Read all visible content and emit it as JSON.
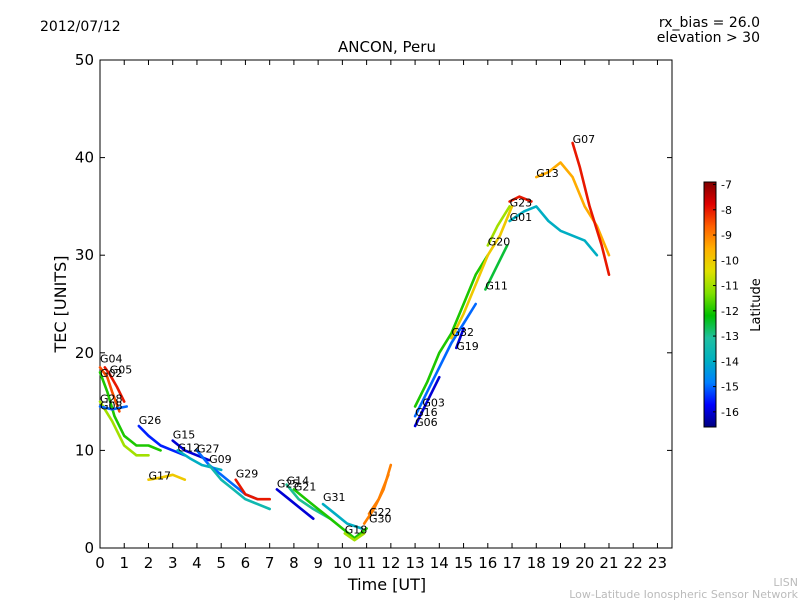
{
  "header": {
    "date": "2012/07/12",
    "rx_bias": "rx_bias = 26.0",
    "elevation": "elevation > 30"
  },
  "footer": {
    "line1": "LISN",
    "line2": "Low-Latitude Ionospheric Sensor Network"
  },
  "chart_data": {
    "type": "line",
    "title": "ANCON, Peru",
    "xlabel": "Time [UT]",
    "ylabel": "TEC [UNITS]",
    "xlim": [
      0,
      23.6
    ],
    "ylim": [
      0,
      50
    ],
    "xticks": [
      0,
      1,
      2,
      3,
      4,
      5,
      6,
      7,
      8,
      9,
      10,
      11,
      12,
      13,
      14,
      15,
      16,
      17,
      18,
      19,
      20,
      21,
      22,
      23
    ],
    "yticks": [
      0,
      10,
      20,
      30,
      40,
      50
    ],
    "grid": false,
    "colorbar": {
      "label": "Latitude",
      "min": -16.6,
      "max": -6.9,
      "ticks": [
        -7,
        -8,
        -9,
        -10,
        -11,
        -12,
        -13,
        -14,
        -15,
        -16
      ],
      "colors": [
        "#00007f",
        "#0000ff",
        "#0080ff",
        "#00b0c0",
        "#20c0a0",
        "#00c000",
        "#80e000",
        "#e0e000",
        "#ffb000",
        "#ff6000",
        "#e00000",
        "#7f0000"
      ]
    },
    "series": [
      {
        "name": "G04",
        "label_x": 0.0,
        "label_y": 19.0,
        "lat": -12,
        "points": [
          [
            0,
            18
          ],
          [
            0.3,
            16
          ],
          [
            0.6,
            13.5
          ],
          [
            1,
            11.5
          ],
          [
            1.5,
            10.5
          ],
          [
            2,
            10.5
          ],
          [
            2.5,
            10
          ]
        ]
      },
      {
        "name": "G02",
        "label_x": 0.0,
        "label_y": 17.5,
        "lat": -8.5,
        "points": [
          [
            0,
            18.5
          ],
          [
            0.3,
            17.5
          ],
          [
            0.5,
            16
          ],
          [
            0.8,
            14
          ]
        ]
      },
      {
        "name": "G05",
        "label_x": 0.4,
        "label_y": 17.9,
        "lat": -8,
        "points": [
          [
            0.2,
            18.5
          ],
          [
            0.4,
            17.8
          ],
          [
            0.7,
            16.5
          ],
          [
            1,
            15
          ]
        ]
      },
      {
        "name": "G28",
        "label_x": 0.0,
        "label_y": 14.9,
        "lat": -11,
        "points": [
          [
            0,
            15
          ],
          [
            0.5,
            13
          ],
          [
            1,
            10.5
          ],
          [
            1.5,
            9.5
          ],
          [
            2,
            9.5
          ]
        ]
      },
      {
        "name": "G08",
        "label_x": 0.0,
        "label_y": 14.2,
        "lat": -15,
        "points": [
          [
            0,
            14.5
          ],
          [
            0.5,
            14.2
          ],
          [
            1.1,
            14.5
          ]
        ]
      },
      {
        "name": "G30",
        "label_x": 11.1,
        "label_y": 2.6,
        "lat": -9,
        "points": [
          [
            10.9,
            2.5
          ],
          [
            11.3,
            4
          ],
          [
            11.7,
            6
          ],
          [
            12,
            8.5
          ]
        ]
      },
      {
        "name": "G26",
        "label_x": 1.6,
        "label_y": 12.7,
        "lat": -15.5,
        "points": [
          [
            1.6,
            12.5
          ],
          [
            2,
            11.5
          ],
          [
            2.5,
            10.5
          ],
          [
            3,
            10
          ],
          [
            3.5,
            9.5
          ]
        ]
      },
      {
        "name": "G17",
        "label_x": 2.0,
        "label_y": 7.0,
        "lat": -10,
        "points": [
          [
            2,
            7
          ],
          [
            2.5,
            7.2
          ],
          [
            3,
            7.5
          ],
          [
            3.5,
            7
          ]
        ]
      },
      {
        "name": "G15",
        "label_x": 3.0,
        "label_y": 11.2,
        "lat": -16,
        "points": [
          [
            3,
            11
          ],
          [
            3.5,
            10
          ],
          [
            4,
            9.5
          ],
          [
            4.5,
            9
          ]
        ]
      },
      {
        "name": "G12",
        "label_x": 3.2,
        "label_y": 9.9,
        "lat": -14,
        "points": [
          [
            3.2,
            10
          ],
          [
            3.7,
            9.2
          ],
          [
            4.2,
            8.5
          ],
          [
            5,
            8
          ]
        ]
      },
      {
        "name": "G27",
        "label_x": 4.0,
        "label_y": 9.8,
        "lat": -15,
        "points": [
          [
            4,
            10
          ],
          [
            4.5,
            8.5
          ],
          [
            5,
            7.5
          ],
          [
            5.5,
            6.5
          ],
          [
            6,
            5.5
          ],
          [
            6.5,
            5
          ]
        ]
      },
      {
        "name": "G09",
        "label_x": 4.5,
        "label_y": 8.7,
        "lat": -13.5,
        "points": [
          [
            4.5,
            8.5
          ],
          [
            5,
            7
          ],
          [
            5.5,
            6
          ],
          [
            6,
            5
          ],
          [
            6.5,
            4.5
          ],
          [
            7,
            4
          ]
        ]
      },
      {
        "name": "G29",
        "label_x": 5.6,
        "label_y": 7.2,
        "lat": -8,
        "points": [
          [
            5.6,
            7
          ],
          [
            6,
            5.5
          ],
          [
            6.5,
            5
          ],
          [
            7,
            5
          ]
        ]
      },
      {
        "name": "G25",
        "label_x": 7.3,
        "label_y": 6.2,
        "lat": -16,
        "points": [
          [
            7.3,
            6
          ],
          [
            7.8,
            5
          ],
          [
            8.3,
            4
          ],
          [
            8.8,
            3
          ]
        ]
      },
      {
        "name": "G14",
        "label_x": 7.7,
        "label_y": 6.5,
        "lat": -13,
        "points": [
          [
            7.7,
            6.5
          ],
          [
            8.2,
            5
          ],
          [
            8.8,
            4
          ],
          [
            9.5,
            3
          ]
        ]
      },
      {
        "name": "G21",
        "label_x": 8.0,
        "label_y": 5.9,
        "lat": -12,
        "points": [
          [
            8,
            6
          ],
          [
            8.5,
            5
          ],
          [
            9,
            4
          ],
          [
            9.5,
            3
          ],
          [
            10,
            2
          ],
          [
            10.5,
            1
          ],
          [
            11,
            2
          ]
        ]
      },
      {
        "name": "G31",
        "label_x": 9.2,
        "label_y": 4.8,
        "lat": -14,
        "points": [
          [
            9.2,
            4.5
          ],
          [
            9.7,
            3.5
          ],
          [
            10.2,
            2.5
          ],
          [
            10.8,
            2
          ]
        ]
      },
      {
        "name": "G18",
        "label_x": 10.1,
        "label_y": 1.5,
        "lat": -11,
        "points": [
          [
            10.1,
            1.5
          ],
          [
            10.5,
            0.8
          ],
          [
            10.9,
            1.5
          ]
        ]
      },
      {
        "name": "G22",
        "label_x": 11.1,
        "label_y": 3.3,
        "lat": -9,
        "points": [
          [
            11.1,
            3.5
          ],
          [
            11.5,
            5
          ],
          [
            11.9,
            7.5
          ]
        ]
      },
      {
        "name": "G16",
        "label_x": 13.0,
        "label_y": 13.5,
        "lat": -15,
        "points": [
          [
            13,
            13.5
          ],
          [
            13.5,
            16
          ],
          [
            14,
            18.5
          ],
          [
            14.5,
            21
          ],
          [
            15,
            23
          ],
          [
            15.5,
            25
          ]
        ]
      },
      {
        "name": "G06",
        "label_x": 13.0,
        "label_y": 12.5,
        "lat": -16,
        "points": [
          [
            13,
            12.5
          ],
          [
            13.5,
            15
          ],
          [
            14,
            17.5
          ]
        ]
      },
      {
        "name": "G03",
        "label_x": 13.3,
        "label_y": 14.5,
        "lat": -12,
        "points": [
          [
            13,
            14.5
          ],
          [
            13.5,
            17
          ],
          [
            14,
            20
          ],
          [
            14.5,
            22
          ],
          [
            15,
            25
          ],
          [
            15.5,
            28
          ],
          [
            16,
            30
          ]
        ]
      },
      {
        "name": "G32",
        "label_x": 14.5,
        "label_y": 21.7,
        "lat": -10,
        "points": [
          [
            14.5,
            21.5
          ],
          [
            15,
            24
          ],
          [
            15.5,
            27
          ],
          [
            16,
            30
          ],
          [
            16.5,
            32
          ],
          [
            17,
            35
          ]
        ]
      },
      {
        "name": "G19",
        "label_x": 14.7,
        "label_y": 20.3,
        "lat": -16,
        "points": [
          [
            14.7,
            20.5
          ],
          [
            15,
            22.5
          ]
        ]
      },
      {
        "name": "G11",
        "label_x": 15.9,
        "label_y": 26.5,
        "lat": -12.5,
        "points": [
          [
            15.9,
            26.5
          ],
          [
            16.3,
            28.5
          ],
          [
            16.8,
            31
          ]
        ]
      },
      {
        "name": "G20",
        "label_x": 16.0,
        "label_y": 31.0,
        "lat": -11,
        "points": [
          [
            16,
            31
          ],
          [
            16.4,
            33
          ],
          [
            16.9,
            35
          ]
        ]
      },
      {
        "name": "G01",
        "label_x": 16.9,
        "label_y": 33.5,
        "lat": -14,
        "points": [
          [
            16.9,
            33.5
          ],
          [
            17.5,
            34.5
          ],
          [
            18,
            35
          ],
          [
            18.5,
            33.5
          ],
          [
            19,
            32.5
          ],
          [
            19.5,
            32
          ],
          [
            20,
            31.5
          ],
          [
            20.5,
            30
          ]
        ]
      },
      {
        "name": "G23",
        "label_x": 16.9,
        "label_y": 35.0,
        "lat": -8,
        "points": [
          [
            16.9,
            35.5
          ],
          [
            17.3,
            36
          ],
          [
            17.8,
            35.5
          ]
        ]
      },
      {
        "name": "G13",
        "label_x": 18.0,
        "label_y": 38.0,
        "lat": -9.5,
        "points": [
          [
            18,
            38
          ],
          [
            18.5,
            38.5
          ],
          [
            19,
            39.5
          ],
          [
            19.5,
            38
          ],
          [
            20,
            35
          ],
          [
            20.5,
            33
          ],
          [
            21,
            30
          ]
        ]
      },
      {
        "name": "G07",
        "label_x": 19.5,
        "label_y": 41.5,
        "lat": -8,
        "points": [
          [
            19.5,
            41.5
          ],
          [
            19.8,
            39
          ],
          [
            20.2,
            35
          ],
          [
            20.7,
            31
          ],
          [
            21,
            28
          ]
        ]
      }
    ]
  }
}
